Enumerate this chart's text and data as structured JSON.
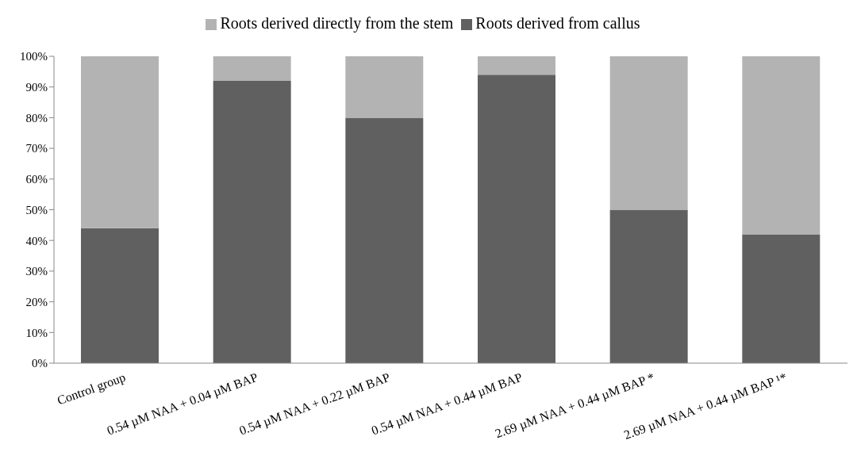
{
  "chart_data": {
    "type": "bar",
    "stacked": true,
    "categories": [
      "Control group",
      "0.54 µM NAA + 0.04 µM BAP",
      "0.54 µM NAA + 0.22 µM BAP",
      "0.54 µM NAA + 0.44 µM BAP",
      "2.69 µM NAA + 0.44 µM BAP *",
      "2.69 µM NAA + 0.44 µM BAP ¹*"
    ],
    "series": [
      {
        "name": "Roots derived from callus",
        "color": "#606060",
        "values": [
          44,
          92,
          80,
          94,
          50,
          42
        ]
      },
      {
        "name": "Roots derived directly from the stem",
        "color": "#b3b3b3",
        "values": [
          56,
          8,
          20,
          6,
          50,
          58
        ]
      }
    ],
    "ylim": [
      0,
      100
    ],
    "yticks": [
      {
        "value": 0,
        "label": "0%"
      },
      {
        "value": 10,
        "label": "10%"
      },
      {
        "value": 20,
        "label": "20%"
      },
      {
        "value": 30,
        "label": "30%"
      },
      {
        "value": 40,
        "label": "40%"
      },
      {
        "value": 50,
        "label": "50%"
      },
      {
        "value": 60,
        "label": "60%"
      },
      {
        "value": 70,
        "label": "70%"
      },
      {
        "value": 80,
        "label": "80%"
      },
      {
        "value": 90,
        "label": "90%"
      },
      {
        "value": 100,
        "label": "100%"
      }
    ],
    "grid": false,
    "legend": "top"
  }
}
